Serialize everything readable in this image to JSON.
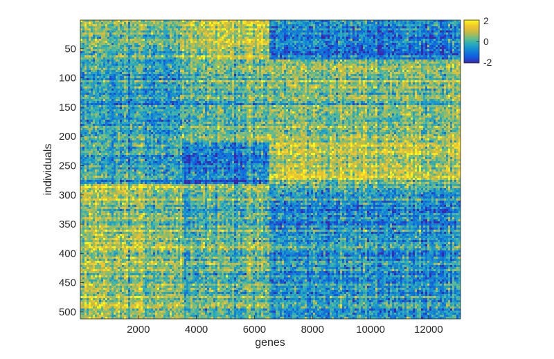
{
  "chart_data": {
    "type": "heatmap",
    "xlabel": "genes",
    "ylabel": "individuals",
    "xlim": [
      1,
      13100
    ],
    "ylim": [
      1,
      512
    ],
    "x_ticks": [
      2000,
      4000,
      6000,
      8000,
      10000,
      12000
    ],
    "y_ticks": [
      50,
      100,
      150,
      200,
      250,
      300,
      350,
      400,
      450,
      500
    ],
    "x_tick_labels": [
      "2000",
      "4000",
      "6000",
      "8000",
      "10000",
      "12000"
    ],
    "y_tick_labels": [
      "50",
      "100",
      "150",
      "200",
      "250",
      "300",
      "350",
      "400",
      "450",
      "500"
    ],
    "y_axis_reversed": true,
    "colorbar": {
      "min": -2,
      "max": 2,
      "labels": [
        "2",
        "0",
        "-2"
      ],
      "position": "right"
    },
    "colormap": [
      "#3e26a8",
      "#0f5ce1",
      "#1384d4",
      "#25a9c0",
      "#66bd8a",
      "#c3ba44",
      "#f4c62f",
      "#f9fb15"
    ],
    "block_structure": {
      "gene_boundaries": [
        1,
        3500,
        6550,
        13100
      ],
      "individual_boundaries": [
        1,
        70,
        210,
        280,
        512
      ],
      "block_means": [
        [
          0.2,
          0.9,
          -0.9
        ],
        [
          -0.4,
          0.2,
          0.4
        ],
        [
          -0.3,
          -0.9,
          0.9
        ],
        [
          0.6,
          0.2,
          -0.5
        ]
      ]
    }
  }
}
